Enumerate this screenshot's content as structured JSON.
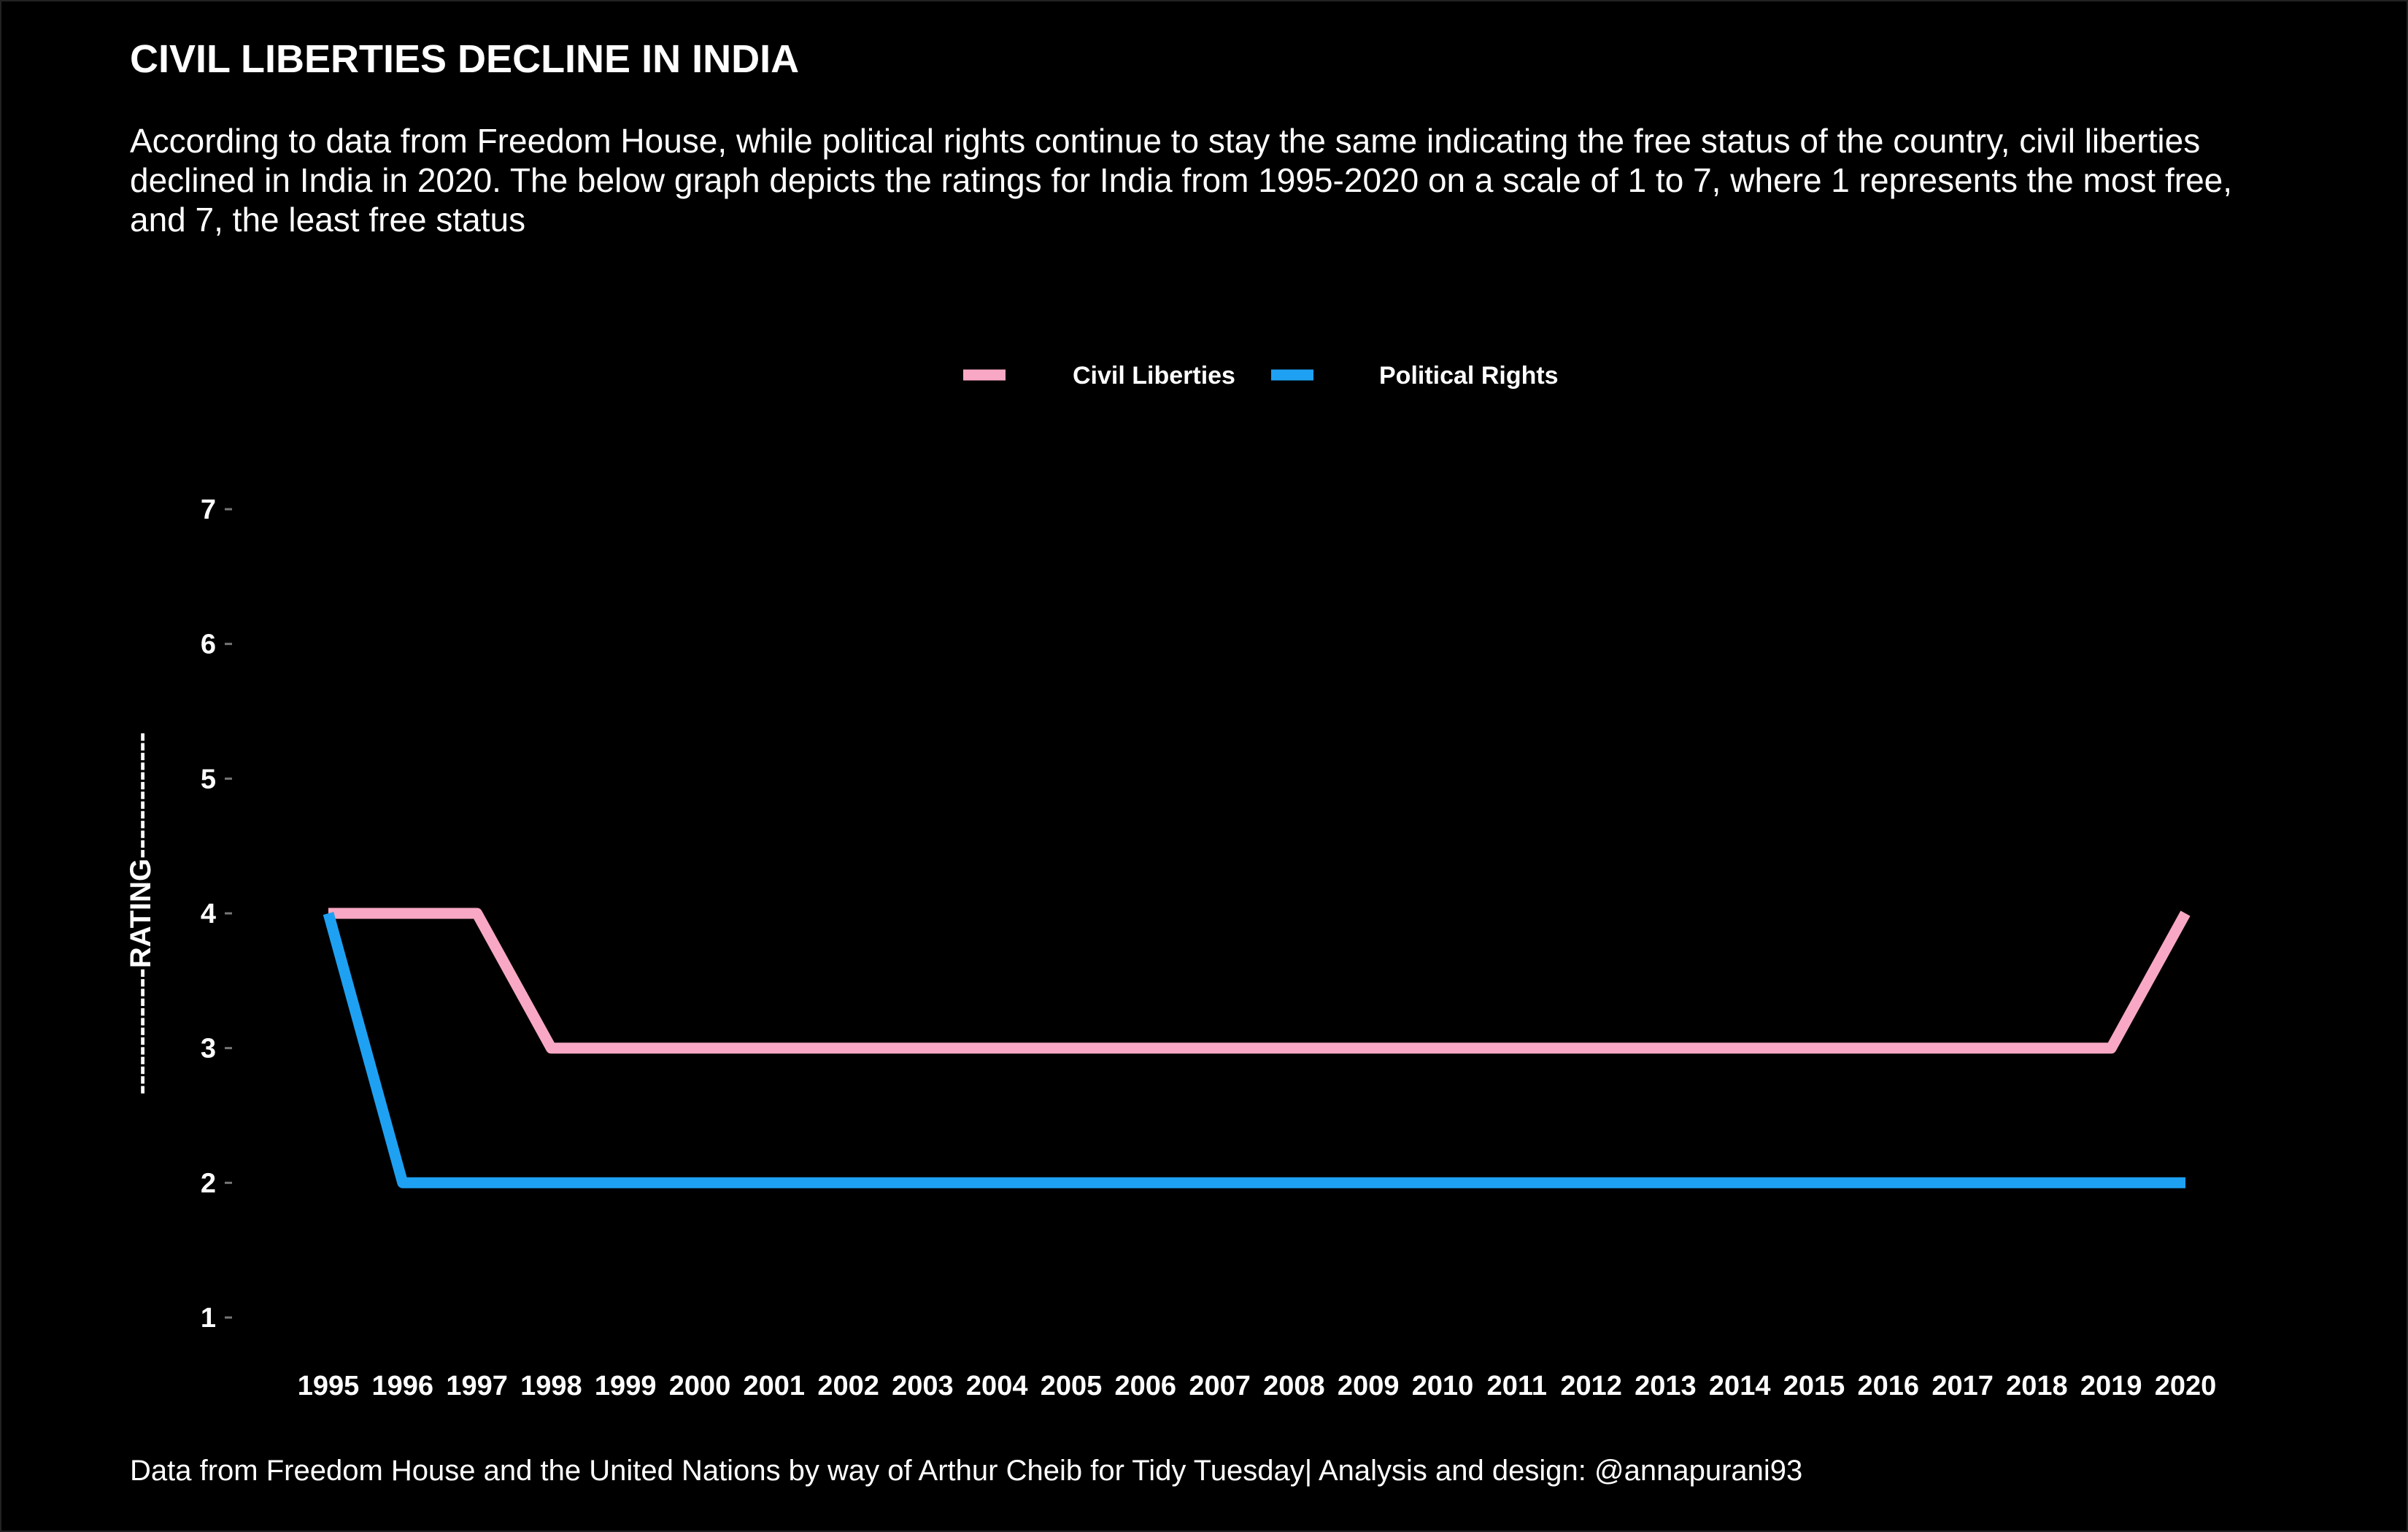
{
  "page": {
    "title": "CIVIL LIBERTIES DECLINE IN INDIA",
    "subtitle": "According to data from Freedom House, while political rights continue to stay the same indicating the free status of the country, civil liberties declined in India in 2020. The below graph depicts the ratings for India from 1995-2020 on a scale of 1 to 7, where 1 represents the most free, and 7, the least free status",
    "caption": "Data from Freedom House and the United Nations by way of Arthur Cheib for Tidy Tuesday| Analysis and design: @annapurani93"
  },
  "colors": {
    "background": "#000000",
    "text": "#ffffff",
    "civil_liberties": "#f8a8c4",
    "political_rights": "#1ea1f2"
  },
  "chart_data": {
    "type": "line",
    "title": "CIVIL LIBERTIES DECLINE IN INDIA",
    "xlabel": "",
    "ylabel": "-------------RATING-------------",
    "x": [
      "1995",
      "1996",
      "1997",
      "1998",
      "1999",
      "2000",
      "2001",
      "2002",
      "2003",
      "2004",
      "2005",
      "2006",
      "2007",
      "2008",
      "2009",
      "2010",
      "2011",
      "2012",
      "2013",
      "2014",
      "2015",
      "2016",
      "2017",
      "2018",
      "2019",
      "2020"
    ],
    "yticks": [
      "1",
      "2",
      "3",
      "4",
      "5",
      "6",
      "7"
    ],
    "ylim": [
      1,
      7
    ],
    "grid": false,
    "legend_position": "top",
    "series": [
      {
        "name": "Civil Liberties",
        "color": "#f8a8c4",
        "values": [
          4,
          4,
          4,
          3,
          3,
          3,
          3,
          3,
          3,
          3,
          3,
          3,
          3,
          3,
          3,
          3,
          3,
          3,
          3,
          3,
          3,
          3,
          3,
          3,
          3,
          4
        ]
      },
      {
        "name": "Political Rights",
        "color": "#1ea1f2",
        "values": [
          4,
          2,
          2,
          2,
          2,
          2,
          2,
          2,
          2,
          2,
          2,
          2,
          2,
          2,
          2,
          2,
          2,
          2,
          2,
          2,
          2,
          2,
          2,
          2,
          2,
          2
        ]
      }
    ]
  }
}
